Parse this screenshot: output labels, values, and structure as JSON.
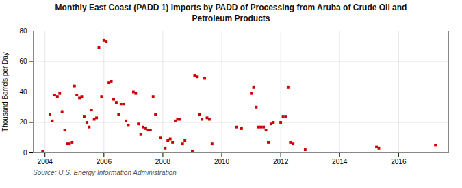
{
  "chart_data": {
    "type": "scatter",
    "title": "Monthly East Coast (PADD 1) Imports by PADD of Processing from Aruba of Crude Oil and\nPetroleum Products",
    "ylabel": "Thousand Barrels per Day",
    "source": "Source: U.S. Energy Information Administration",
    "color": "#cc0000",
    "marker": "square",
    "grid": true,
    "xlim": [
      2003.6,
      2017.7
    ],
    "xticks": [
      2004,
      2006,
      2008,
      2010,
      2012,
      2014,
      2016
    ],
    "ylim": [
      0,
      80
    ],
    "yticks": [
      0,
      20,
      40,
      60,
      80
    ],
    "x": [
      2003.92,
      2004.17,
      2004.25,
      2004.33,
      2004.42,
      2004.5,
      2004.58,
      2004.67,
      2004.75,
      2004.83,
      2004.92,
      2005.0,
      2005.08,
      2005.17,
      2005.25,
      2005.33,
      2005.42,
      2005.5,
      2005.58,
      2005.67,
      2005.75,
      2005.83,
      2005.92,
      2006.0,
      2006.08,
      2006.17,
      2006.25,
      2006.33,
      2006.42,
      2006.5,
      2006.58,
      2006.67,
      2006.75,
      2006.83,
      2007.0,
      2007.08,
      2007.17,
      2007.25,
      2007.33,
      2007.42,
      2007.5,
      2007.58,
      2007.67,
      2007.75,
      2007.92,
      2008.08,
      2008.17,
      2008.25,
      2008.33,
      2008.42,
      2008.5,
      2008.58,
      2008.67,
      2008.75,
      2009.0,
      2009.08,
      2009.17,
      2009.25,
      2009.33,
      2009.42,
      2009.5,
      2009.58,
      2009.67,
      2010.5,
      2010.67,
      2011.0,
      2011.08,
      2011.17,
      2011.25,
      2011.33,
      2011.42,
      2011.5,
      2011.58,
      2011.67,
      2011.75,
      2012.0,
      2012.08,
      2012.17,
      2012.25,
      2012.33,
      2012.42,
      2012.83,
      2015.25,
      2015.33,
      2017.25
    ],
    "values": [
      1,
      25,
      21,
      38,
      37,
      39,
      27,
      15,
      6,
      6,
      7,
      44,
      38,
      36,
      37,
      24,
      20,
      17,
      28,
      22,
      23,
      69,
      37,
      74,
      73,
      46,
      47,
      35,
      33,
      25,
      32,
      32,
      21,
      18,
      40,
      39,
      19,
      12,
      17,
      16,
      15,
      15,
      37,
      25,
      10,
      3,
      8,
      9,
      7,
      21,
      22,
      22,
      6,
      8,
      1,
      51,
      50,
      25,
      22,
      49,
      23,
      22,
      6,
      17,
      16,
      39,
      43,
      30,
      17,
      17,
      17,
      15,
      7,
      19,
      20,
      20,
      24,
      24,
      43,
      7,
      6,
      2,
      4,
      3,
      5
    ]
  }
}
